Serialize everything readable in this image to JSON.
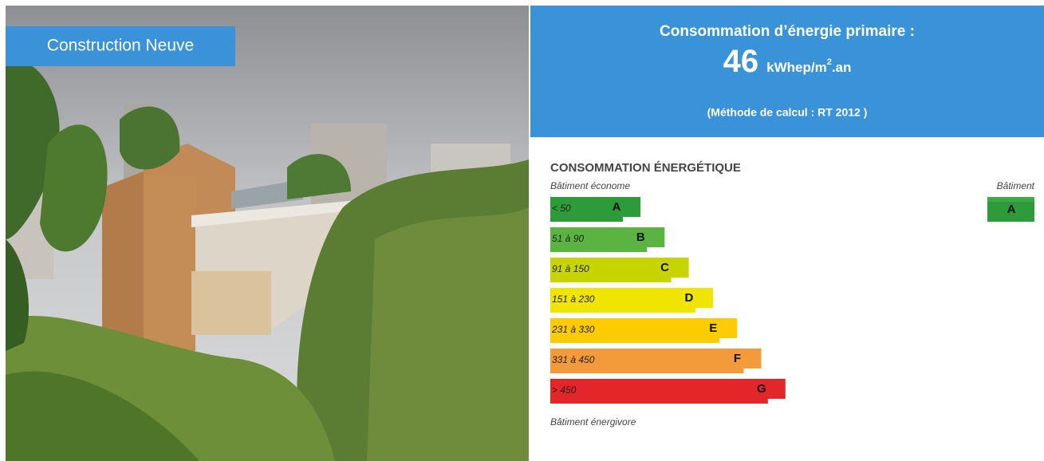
{
  "header": {
    "badge": "Construction Neuve"
  },
  "panel": {
    "title": "Consommation d’énergie primaire :",
    "value": "46",
    "unit_prefix": "kWhep/m",
    "unit_sup": "2",
    "unit_suffix": ".an",
    "method": "(Méthode de calcul : RT 2012 )"
  },
  "label": {
    "heading": "CONSOMMATION ÉNERGÉTIQUE",
    "top_note": "Bâtiment économe",
    "bottom_note": "Bâtiment énergivore",
    "classes": [
      {
        "range": "< 50",
        "letter": "A"
      },
      {
        "range": "51 à 90",
        "letter": "B"
      },
      {
        "range": "91 à 150",
        "letter": "C"
      },
      {
        "range": "151 à 230",
        "letter": "D"
      },
      {
        "range": "231 à 330",
        "letter": "E"
      },
      {
        "range": "331 à 450",
        "letter": "F"
      },
      {
        "range": "> 450",
        "letter": "G"
      }
    ],
    "building_caption": "Bâtiment",
    "building_class": "A"
  }
}
